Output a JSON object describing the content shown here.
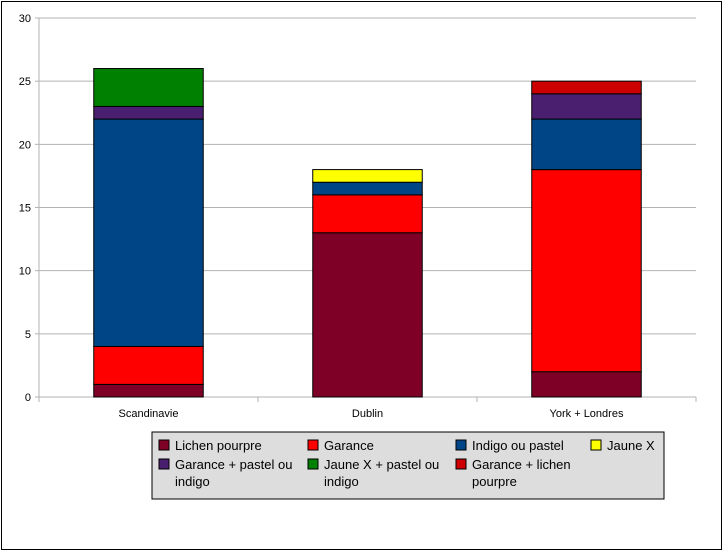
{
  "chart_data": {
    "type": "bar",
    "stacked": true,
    "categories": [
      "Scandinavie",
      "Dublin",
      "York + Londres"
    ],
    "ylim": [
      0,
      30
    ],
    "yticks": [
      0,
      5,
      10,
      15,
      20,
      25,
      30
    ],
    "grid": true,
    "legend_position": "bottom",
    "series": [
      {
        "name": "Lichen pourpre",
        "color": "#7f0026",
        "values": [
          1,
          13,
          2
        ]
      },
      {
        "name": "Garance",
        "color": "#ff0000",
        "values": [
          3,
          3,
          16
        ]
      },
      {
        "name": "Indigo ou pastel",
        "color": "#004586",
        "values": [
          18,
          1,
          4
        ]
      },
      {
        "name": "Jaune X",
        "color": "#ffff00",
        "values": [
          0,
          1,
          0
        ]
      },
      {
        "name": "Garance + pastel ou indigo",
        "color": "#4b1f6f",
        "values": [
          1,
          0,
          2
        ]
      },
      {
        "name": "Jaune X + pastel ou indigo",
        "color": "#008000",
        "values": [
          3,
          0,
          0
        ]
      },
      {
        "name": "Garance + lichen pourpre",
        "color": "#cc0000",
        "values": [
          0,
          0,
          1
        ]
      }
    ],
    "legend_lines": [
      [
        "Lichen pourpre"
      ],
      [
        "Garance"
      ],
      [
        "Indigo ou pastel"
      ],
      [
        "Jaune X"
      ],
      [
        "Garance + pastel ou",
        "indigo"
      ],
      [
        "Jaune X + pastel ou",
        "indigo"
      ],
      [
        "Garance + lichen",
        "pourpre"
      ]
    ]
  }
}
